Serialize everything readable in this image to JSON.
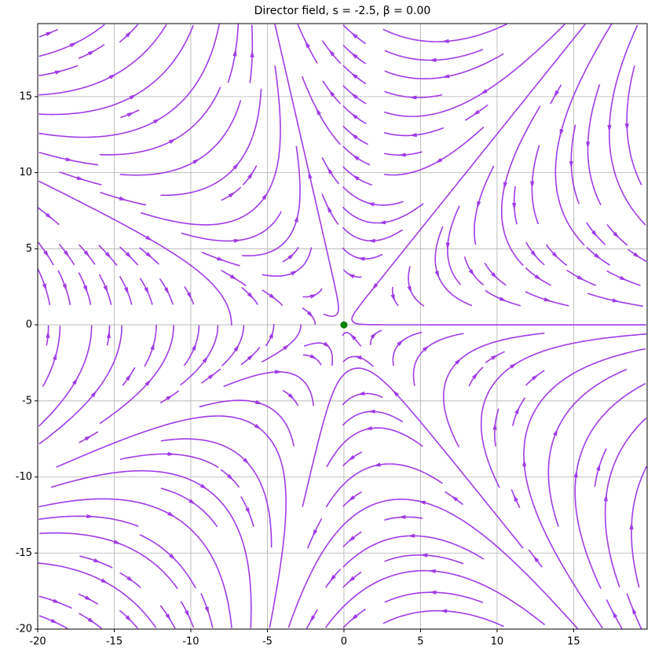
{
  "chart_data": {
    "type": "streamplot",
    "title": "Director field, s = -2.5, β = 0.00",
    "s": -2.5,
    "beta": 0,
    "color": "#a03ce6",
    "xlim": [
      -20,
      19.8
    ],
    "ylim": [
      -20,
      19.8
    ],
    "xticks": [
      -20,
      -15,
      -10,
      -5,
      0,
      5,
      10,
      15
    ],
    "yticks": [
      -20,
      -15,
      -10,
      -5,
      0,
      5,
      10,
      15
    ],
    "grid": true,
    "marker": {
      "x": 0,
      "y": 0,
      "color": "green"
    }
  }
}
